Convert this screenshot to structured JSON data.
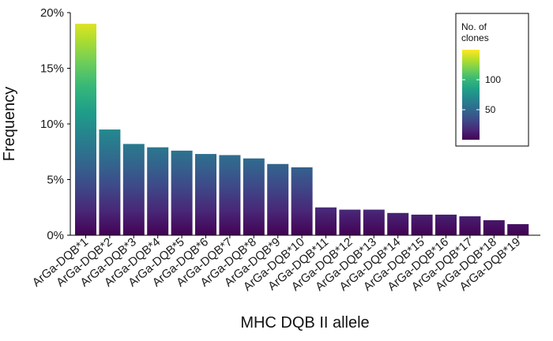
{
  "chart_data": {
    "type": "bar",
    "xlabel": "MHC DQB II allele",
    "ylabel": "Frequency",
    "ylim": [
      0,
      20
    ],
    "yticks": [
      0,
      5,
      10,
      15,
      20
    ],
    "ytick_labels": [
      "0%",
      "5%",
      "10%",
      "15%",
      "20%"
    ],
    "categories": [
      "ArGa-DQB*1",
      "ArGa-DQB*2",
      "ArGa-DQB*3",
      "ArGa-DQB*4",
      "ArGa-DQB*5",
      "ArGa-DQB*6",
      "ArGa-DQB*7",
      "ArGa-DQB*8",
      "ArGa-DQB*9",
      "ArGa-DQB*10",
      "ArGa-DQB*11",
      "ArGa-DQB*12",
      "ArGa-DQB*13",
      "ArGa-DQB*14",
      "ArGa-DQB*15",
      "ArGa-DQB*16",
      "ArGa-DQB*17",
      "ArGa-DQB*18",
      "ArGa-DQB*19"
    ],
    "values": [
      19.0,
      9.5,
      8.2,
      7.9,
      7.6,
      7.3,
      7.2,
      6.9,
      6.4,
      6.1,
      2.5,
      2.3,
      2.3,
      2.0,
      1.85,
      1.85,
      1.7,
      1.35,
      1.0
    ],
    "grid": false,
    "legend": {
      "title_lines": [
        "No. of",
        "clones"
      ],
      "ticks": [
        50,
        100
      ],
      "range": [
        0,
        150
      ],
      "placement": "top-right",
      "colormap": "viridis",
      "colors": [
        "#440154",
        "#482878",
        "#3e4a89",
        "#31688e",
        "#26828e",
        "#1f9e89",
        "#35b779",
        "#6ece58",
        "#b5de2b",
        "#fde725"
      ]
    }
  }
}
